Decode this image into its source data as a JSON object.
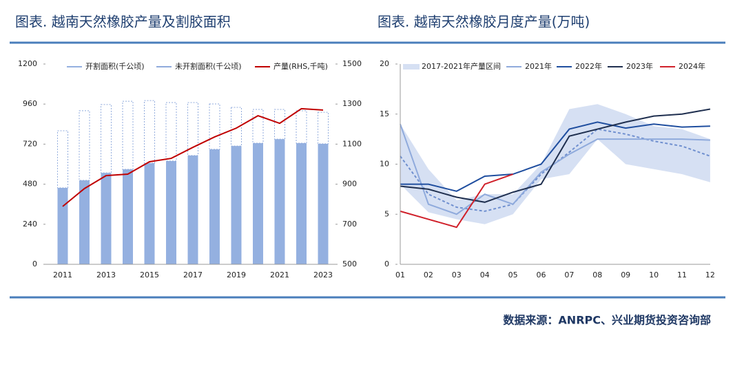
{
  "chart_data": [
    {
      "type": "bar",
      "title": "图表. 越南天然橡胶产量及割胶面积",
      "categories": [
        "2011",
        null,
        "2013",
        null,
        "2015",
        null,
        "2017",
        null,
        "2019",
        null,
        "2021",
        null,
        "2023"
      ],
      "ylim": [
        0,
        1200
      ],
      "yticks": [
        0,
        240,
        480,
        720,
        960,
        1200
      ],
      "y2lim": [
        500,
        1500
      ],
      "y2ticks": [
        500,
        700,
        900,
        1100,
        1300,
        1500
      ],
      "series": [
        {
          "name": "开割面积(千公顷)",
          "color": "#94b0e0",
          "values": [
            458,
            503,
            548,
            569,
            606,
            619,
            652,
            689,
            709,
            726,
            750,
            726,
            722
          ]
        },
        {
          "name": "未开割面积(千公顷)",
          "color": "#8faadc",
          "style": "dashed",
          "values": [
            342,
            417,
            409,
            408,
            375,
            350,
            317,
            272,
            231,
            202,
            178,
            194,
            189
          ]
        },
        {
          "name": "产量(RHS,千吨)",
          "color": "#c00000",
          "type": "line",
          "axis": "y2",
          "values": [
            789,
            878,
            943,
            950,
            1012,
            1029,
            1084,
            1136,
            1180,
            1242,
            1204,
            1277,
            1270
          ]
        }
      ]
    },
    {
      "type": "line",
      "title": "图表. 越南天然橡胶月度产量(万吨)",
      "categories": [
        "01",
        "02",
        "03",
        "04",
        "05",
        "06",
        "07",
        "08",
        "09",
        "10",
        "11",
        "12"
      ],
      "ylim": [
        0,
        20
      ],
      "yticks": [
        0,
        5,
        10,
        15,
        20
      ],
      "series": [
        {
          "name": "2017-2021年产量区间",
          "color": "#d6e0f3",
          "type": "band",
          "values": [
            14,
            9.5,
            6.4,
            7,
            7,
            10,
            15.5,
            16,
            15,
            13.8,
            13.5,
            12.5
          ],
          "lower": [
            8,
            5.2,
            4.5,
            4,
            5,
            8.5,
            9,
            12.5,
            10,
            9.5,
            9,
            8.2
          ]
        },
        {
          "color": "#6f8fcf",
          "style": "dashed",
          "values": [
            10.8,
            7,
            5.7,
            5.3,
            6,
            9,
            11.2,
            13.5,
            13,
            12.3,
            11.8,
            10.8
          ]
        },
        {
          "name": "2021年",
          "color": "#8faadc",
          "values": [
            14,
            6,
            5,
            7,
            6,
            9.2,
            11,
            12.5,
            12.5,
            12.5,
            12.5,
            12.4
          ]
        },
        {
          "name": "2022年",
          "color": "#1f4e9f",
          "values": [
            8,
            8,
            7.3,
            8.8,
            9,
            10,
            13.5,
            14.2,
            13.6,
            14,
            13.7,
            13.8
          ]
        },
        {
          "name": "2023年",
          "color": "#1f2f4f",
          "values": [
            7.8,
            7.5,
            6.7,
            6.2,
            7.2,
            8,
            12.8,
            13.5,
            14.2,
            14.8,
            15,
            15.5
          ]
        },
        {
          "name": "2024年",
          "color": "#d0202a",
          "values": [
            5.3,
            4.5,
            3.7,
            8,
            9,
            null,
            null,
            null,
            null,
            null,
            null,
            null
          ]
        }
      ]
    }
  ],
  "source": "数据来源：ANRPC、兴业期货投资咨询部"
}
